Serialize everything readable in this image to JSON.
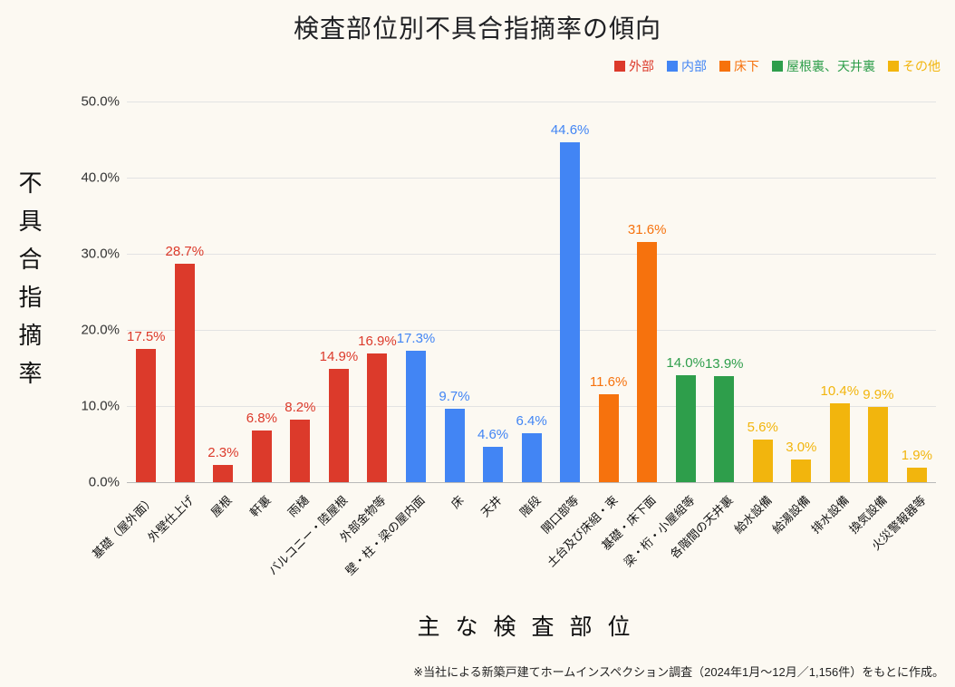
{
  "page": {
    "background": "#FCF9F2"
  },
  "title": "検査部位別不具合指摘率の傾向",
  "legend": {
    "items": [
      {
        "label": "外部",
        "color": "#DC3A2B"
      },
      {
        "label": "内部",
        "color": "#4285F4"
      },
      {
        "label": "床下",
        "color": "#F6720D"
      },
      {
        "label": "屋根裏、天井裏",
        "color": "#2E9E4B"
      },
      {
        "label": "その他",
        "color": "#F2B50D"
      }
    ]
  },
  "y_axis": {
    "title": "不具合指摘率"
  },
  "x_axis": {
    "title": "主な検査部位"
  },
  "footnote": "※当社による新築戸建てホームインスペクション調査（2024年1月〜12月／1,156件）をもとに作成。",
  "chart_data": {
    "type": "bar",
    "title": "検査部位別不具合指摘率の傾向",
    "xlabel": "主な検査部位",
    "ylabel": "不具合指摘率",
    "ylim": [
      0,
      50
    ],
    "grid": true,
    "legend_position": "top-right",
    "y_ticks": [
      {
        "value": 0,
        "label": "0.0%"
      },
      {
        "value": 10,
        "label": "10.0%"
      },
      {
        "value": 20,
        "label": "20.0%"
      },
      {
        "value": 30,
        "label": "30.0%"
      },
      {
        "value": 40,
        "label": "40.0%"
      },
      {
        "value": 50,
        "label": "50.0%"
      }
    ],
    "categories": [
      "基礎（屋外面）",
      "外壁仕上げ",
      "屋根",
      "軒裏",
      "雨樋",
      "バルコニー・陸屋根",
      "外部金物等",
      "壁・柱・梁の屋内面",
      "床",
      "天井",
      "階段",
      "開口部等",
      "土台及び床組・束",
      "基礎・床下面",
      "梁・桁・小屋組等",
      "各階間の天井裏",
      "給水設備",
      "給湯設備",
      "排水設備",
      "換気設備",
      "火災警報器等"
    ],
    "values": [
      17.5,
      28.7,
      2.3,
      6.8,
      8.2,
      14.9,
      16.9,
      17.3,
      9.7,
      4.6,
      6.4,
      44.6,
      11.6,
      31.6,
      14.0,
      13.9,
      5.6,
      3.0,
      10.4,
      9.9,
      1.9
    ],
    "value_labels": [
      "17.5%",
      "28.7%",
      "2.3%",
      "6.8%",
      "8.2%",
      "14.9%",
      "16.9%",
      "17.3%",
      "9.7%",
      "4.6%",
      "6.4%",
      "44.6%",
      "11.6%",
      "31.6%",
      "14.0%",
      "13.9%",
      "5.6%",
      "3.0%",
      "10.4%",
      "9.9%",
      "1.9%"
    ],
    "groups": [
      "外部",
      "外部",
      "外部",
      "外部",
      "外部",
      "外部",
      "外部",
      "内部",
      "内部",
      "内部",
      "内部",
      "内部",
      "床下",
      "床下",
      "屋根裏、天井裏",
      "屋根裏、天井裏",
      "その他",
      "その他",
      "その他",
      "その他",
      "その他"
    ]
  }
}
